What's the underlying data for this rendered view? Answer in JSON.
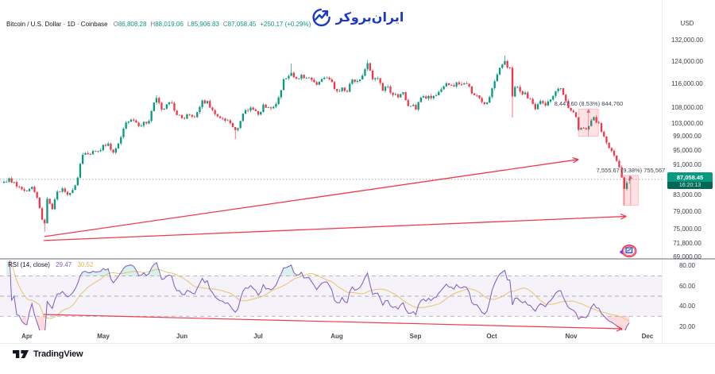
{
  "header": {
    "symbol_title": "Bitcoin / U.S. Dollar · 1D · Coinbase",
    "ohlc": [
      {
        "letter": "O",
        "value": "86,808.28"
      },
      {
        "letter": "H",
        "value": "88,019.06"
      },
      {
        "letter": "L",
        "value": "85,906.83"
      },
      {
        "letter": "C",
        "value": "87,058.45"
      }
    ],
    "change": "+250.17 (+0.29%)"
  },
  "brand": {
    "name": "ایران‌بروکر"
  },
  "price_axis": {
    "currency_label": "USD",
    "ticks": [
      {
        "label": "132,000.00",
        "value": 132000
      },
      {
        "label": "124,000.00",
        "value": 124000
      },
      {
        "label": "116,000.00",
        "value": 116000
      },
      {
        "label": "108,000.00",
        "value": 108000
      },
      {
        "label": "103,000.00",
        "value": 103000
      },
      {
        "label": "99,000.00",
        "value": 99000
      },
      {
        "label": "95,000.00",
        "value": 95000
      },
      {
        "label": "91,000.00",
        "value": 91000
      },
      {
        "label": "83,000.00",
        "value": 83000
      },
      {
        "label": "79,000.00",
        "value": 79000
      },
      {
        "label": "75,000.00",
        "value": 75000
      },
      {
        "label": "71,800.00",
        "value": 71800
      },
      {
        "label": "69,000.00",
        "value": 69000
      }
    ],
    "last_price": {
      "label": "87,058.45",
      "countdown": "16:20:13",
      "value": 87058.45
    }
  },
  "rsi_axis": {
    "ticks": [
      {
        "label": "80.00",
        "value": 80
      },
      {
        "label": "60.00",
        "value": 60
      },
      {
        "label": "40.00",
        "value": 40
      },
      {
        "label": "20.00",
        "value": 20
      }
    ]
  },
  "time_axis": {
    "months": [
      {
        "label": "Apr",
        "day": 9
      },
      {
        "label": "May",
        "day": 39
      },
      {
        "label": "Jun",
        "day": 70
      },
      {
        "label": "Jul",
        "day": 100
      },
      {
        "label": "Aug",
        "day": 131
      },
      {
        "label": "Sep",
        "day": 162
      },
      {
        "label": "Oct",
        "day": 192
      },
      {
        "label": "Nov",
        "day": 223
      },
      {
        "label": "Dec",
        "day": 253
      }
    ]
  },
  "rsi_legend": {
    "title": "RSI",
    "params": "(14, close)",
    "value": "29.47",
    "ma_value": "30.52"
  },
  "footer": {
    "brand": "TradingView"
  },
  "chart_data": {
    "type": "candlestick",
    "symbol": "Bitcoin / U.S. Dollar",
    "interval": "1D",
    "exchange": "Coinbase",
    "ohlc_last": {
      "open": 86808.28,
      "high": 88019.06,
      "low": 85906.83,
      "close": 87058.45,
      "change": 250.17,
      "change_pct": 0.29
    },
    "last_price": 87058.45,
    "price_keypoints": [
      [
        0,
        86400
      ],
      [
        2,
        87300
      ],
      [
        5,
        85200
      ],
      [
        9,
        84000
      ],
      [
        11,
        85100
      ],
      [
        13,
        82400
      ],
      [
        15,
        77100
      ],
      [
        16,
        76300
      ],
      [
        17,
        82100
      ],
      [
        19,
        79600
      ],
      [
        21,
        83900
      ],
      [
        23,
        84700
      ],
      [
        25,
        83100
      ],
      [
        27,
        84300
      ],
      [
        29,
        87500
      ],
      [
        30,
        91200
      ],
      [
        31,
        93700
      ],
      [
        34,
        93800
      ],
      [
        37,
        94700
      ],
      [
        39,
        96500
      ],
      [
        41,
        96900
      ],
      [
        43,
        94300
      ],
      [
        45,
        96900
      ],
      [
        47,
        101300
      ],
      [
        48,
        103200
      ],
      [
        50,
        104100
      ],
      [
        53,
        102100
      ],
      [
        55,
        103400
      ],
      [
        57,
        103700
      ],
      [
        58,
        106800
      ],
      [
        59,
        109600
      ],
      [
        60,
        111100
      ],
      [
        62,
        107300
      ],
      [
        64,
        109000
      ],
      [
        66,
        109400
      ],
      [
        68,
        105600
      ],
      [
        70,
        104600
      ],
      [
        72,
        105800
      ],
      [
        75,
        104900
      ],
      [
        78,
        110300
      ],
      [
        80,
        110100
      ],
      [
        82,
        107100
      ],
      [
        85,
        104600
      ],
      [
        88,
        103900
      ],
      [
        91,
        100900
      ],
      [
        92,
        101500
      ],
      [
        94,
        106000
      ],
      [
        96,
        107000
      ],
      [
        98,
        107300
      ],
      [
        100,
        105700
      ],
      [
        102,
        108900
      ],
      [
        104,
        108000
      ],
      [
        106,
        108200
      ],
      [
        108,
        111300
      ],
      [
        110,
        117500
      ],
      [
        113,
        119800
      ],
      [
        115,
        117700
      ],
      [
        117,
        119100
      ],
      [
        119,
        118000
      ],
      [
        121,
        117300
      ],
      [
        123,
        115600
      ],
      [
        125,
        117600
      ],
      [
        127,
        118100
      ],
      [
        129,
        116500
      ],
      [
        131,
        113400
      ],
      [
        133,
        114600
      ],
      [
        135,
        113200
      ],
      [
        137,
        117400
      ],
      [
        139,
        116900
      ],
      [
        141,
        118800
      ],
      [
        143,
        123300
      ],
      [
        145,
        117500
      ],
      [
        147,
        117900
      ],
      [
        149,
        113500
      ],
      [
        151,
        115000
      ],
      [
        153,
        112100
      ],
      [
        155,
        111300
      ],
      [
        157,
        113000
      ],
      [
        159,
        108400
      ],
      [
        161,
        108800
      ],
      [
        162,
        107300
      ],
      [
        164,
        111200
      ],
      [
        166,
        110900
      ],
      [
        168,
        111000
      ],
      [
        170,
        112000
      ],
      [
        172,
        114000
      ],
      [
        174,
        116100
      ],
      [
        176,
        115400
      ],
      [
        178,
        116400
      ],
      [
        180,
        115700
      ],
      [
        182,
        115900
      ],
      [
        184,
        112600
      ],
      [
        186,
        112000
      ],
      [
        188,
        109700
      ],
      [
        190,
        109600
      ],
      [
        192,
        114400
      ],
      [
        194,
        119200
      ],
      [
        196,
        122800
      ],
      [
        197,
        124100
      ],
      [
        198,
        121700
      ],
      [
        199,
        121600
      ],
      [
        200,
        111600
      ],
      [
        201,
        114800
      ],
      [
        203,
        113300
      ],
      [
        205,
        112900
      ],
      [
        207,
        110800
      ],
      [
        209,
        107400
      ],
      [
        211,
        110100
      ],
      [
        213,
        108600
      ],
      [
        215,
        110600
      ],
      [
        217,
        113400
      ],
      [
        219,
        114400
      ],
      [
        221,
        110100
      ],
      [
        222,
        107800
      ],
      [
        224,
        106400
      ],
      [
        225,
        104900
      ],
      [
        226,
        101000
      ],
      [
        228,
        101500
      ],
      [
        230,
        102100
      ],
      [
        232,
        104900
      ],
      [
        234,
        103000
      ],
      [
        236,
        99000
      ],
      [
        238,
        95600
      ],
      [
        240,
        93500
      ],
      [
        242,
        90200
      ],
      [
        244,
        84600
      ],
      [
        245,
        86100
      ],
      [
        246,
        87058.45
      ]
    ],
    "wick_overrides": {
      "16": {
        "low": 74400
      },
      "60": {
        "high": 112000
      },
      "91": {
        "low": 98200
      },
      "113": {
        "high": 123200
      },
      "143": {
        "high": 124500
      },
      "197": {
        "high": 126200
      },
      "200": {
        "low": 104800
      },
      "244": {
        "low": 80600
      },
      "246": {
        "open": 86808.28,
        "high": 88019.06,
        "low": 85906.83
      }
    },
    "indicator": {
      "name": "RSI",
      "period": 14,
      "source": "close",
      "value": 29.47,
      "ma_value": 30.52,
      "bands": [
        70,
        50,
        30
      ],
      "range": [
        20,
        80
      ]
    },
    "annotations": {
      "ranges": [
        {
          "label": "8,447.60 (8.53%) 844,760",
          "day_start": 226,
          "day_end": 233.8,
          "top_price": 107482,
          "bottom_price": 99034
        },
        {
          "label": "7,555.67 (9.38%) 755,567",
          "day_start": 243.5,
          "day_end": 249.5,
          "top_price": 88106,
          "bottom_price": 80550
        }
      ],
      "price_arrows": [
        {
          "from_day": 15.9,
          "from_price": 73320,
          "to_day": 225.9,
          "to_price": 92400
        },
        {
          "from_day": 15.6,
          "from_price": 72450,
          "to_day": 244.7,
          "to_price": 77900
        }
      ],
      "rsi_arrows": [
        {
          "from_day": 15.6,
          "from_value": 31.8,
          "to_day": 243.1,
          "to_value": 17.6
        }
      ]
    },
    "colors": {
      "up": "#089981",
      "down": "#F23645",
      "rsi": "#7E57C2",
      "rsi_ma": "#E7C46A",
      "annotation": "#EF3A4B",
      "band_fill": "rgba(126,87,194,0.08)",
      "overbought_fill": "rgba(8,153,129,0.15)",
      "oversold_fill": "rgba(242,54,69,0.18)"
    }
  }
}
